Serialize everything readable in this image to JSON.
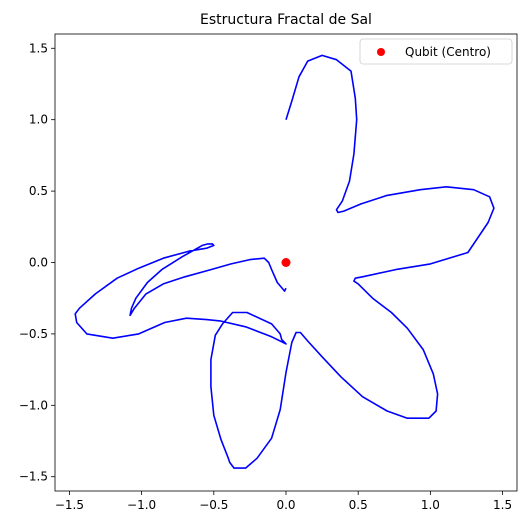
{
  "chart_data": {
    "type": "line",
    "title": "Estructura Fractal de Sal",
    "xlabel": "",
    "ylabel": "",
    "xlim": [
      -1.6,
      1.6
    ],
    "ylim": [
      -1.6,
      1.6
    ],
    "x_ticks": [
      -1.5,
      -1.0,
      -0.5,
      0.0,
      0.5,
      1.0,
      1.5
    ],
    "y_ticks": [
      -1.5,
      -1.0,
      -0.5,
      0.0,
      0.5,
      1.0,
      1.5
    ],
    "x_tick_labels": [
      "−1.5",
      "−1.0",
      "−0.5",
      "0.0",
      "0.5",
      "1.0",
      "1.5"
    ],
    "y_tick_labels": [
      "−1.5",
      "−1.0",
      "−0.5",
      "0.0",
      "0.5",
      "1.0",
      "1.5"
    ],
    "grid": false,
    "legend_position": "top-right",
    "series": [
      {
        "kind": "line",
        "color": "#0000ff",
        "x": [
          0.0,
          0.04,
          0.09,
          0.15,
          0.25,
          0.35,
          0.45,
          0.48,
          0.49,
          0.47,
          0.44,
          0.39,
          0.35,
          0.36,
          0.4,
          0.52,
          0.7,
          0.93,
          1.11,
          1.3,
          1.41,
          1.44,
          1.4,
          1.26,
          1.0,
          0.76,
          0.53,
          0.48,
          0.47,
          0.5,
          0.6,
          0.73,
          0.84,
          0.95,
          1.02,
          1.05,
          1.04,
          0.99,
          0.84,
          0.7,
          0.53,
          0.38,
          0.25,
          0.15,
          0.1,
          0.07,
          0.04,
          0.0,
          -0.04,
          -0.1,
          -0.2,
          -0.28,
          -0.36,
          -0.39,
          -0.4,
          -0.45,
          -0.5,
          -0.52,
          -0.52,
          -0.49,
          -0.44,
          -0.37,
          -0.27,
          -0.1,
          -0.04,
          -0.03,
          -0.02,
          -0.01,
          0.0,
          -0.1,
          -0.28,
          -0.45,
          -0.55,
          -0.69,
          -0.84,
          -1.02,
          -1.2,
          -1.38,
          -1.45,
          -1.46,
          -1.43,
          -1.32,
          -1.17,
          -1.02,
          -0.85,
          -0.67,
          -0.55,
          -0.5,
          -0.51,
          -0.54,
          -0.58,
          -0.72,
          -0.86,
          -0.96,
          -1.04,
          -1.07,
          -1.08,
          -1.05,
          -0.97,
          -0.85,
          -0.7,
          -0.52,
          -0.38,
          -0.25,
          -0.15,
          -0.12,
          -0.1,
          -0.06,
          -0.01,
          0.0
        ],
        "y": [
          1.0,
          1.13,
          1.3,
          1.41,
          1.45,
          1.42,
          1.34,
          1.15,
          1.0,
          0.76,
          0.57,
          0.43,
          0.37,
          0.35,
          0.36,
          0.41,
          0.47,
          0.51,
          0.53,
          0.51,
          0.46,
          0.38,
          0.28,
          0.07,
          -0.01,
          -0.05,
          -0.1,
          -0.11,
          -0.13,
          -0.15,
          -0.25,
          -0.35,
          -0.46,
          -0.61,
          -0.78,
          -0.92,
          -1.04,
          -1.09,
          -1.09,
          -1.04,
          -0.94,
          -0.8,
          -0.66,
          -0.55,
          -0.49,
          -0.49,
          -0.56,
          -0.77,
          -1.03,
          -1.23,
          -1.37,
          -1.44,
          -1.44,
          -1.4,
          -1.37,
          -1.24,
          -1.07,
          -0.87,
          -0.68,
          -0.51,
          -0.43,
          -0.35,
          -0.35,
          -0.43,
          -0.5,
          -0.54,
          -0.55,
          -0.56,
          -0.57,
          -0.52,
          -0.45,
          -0.41,
          -0.4,
          -0.39,
          -0.42,
          -0.5,
          -0.53,
          -0.5,
          -0.42,
          -0.36,
          -0.32,
          -0.22,
          -0.11,
          -0.04,
          0.03,
          0.08,
          0.1,
          0.12,
          0.13,
          0.13,
          0.12,
          0.04,
          -0.05,
          -0.14,
          -0.25,
          -0.32,
          -0.37,
          -0.32,
          -0.22,
          -0.15,
          -0.1,
          -0.05,
          -0.01,
          0.02,
          0.03,
          0.0,
          -0.05,
          -0.14,
          -0.2,
          -0.18
        ]
      },
      {
        "kind": "scatter",
        "name": "Qubit (Centro)",
        "color": "#ff0000",
        "x": [
          0.0
        ],
        "y": [
          0.0
        ]
      }
    ]
  }
}
